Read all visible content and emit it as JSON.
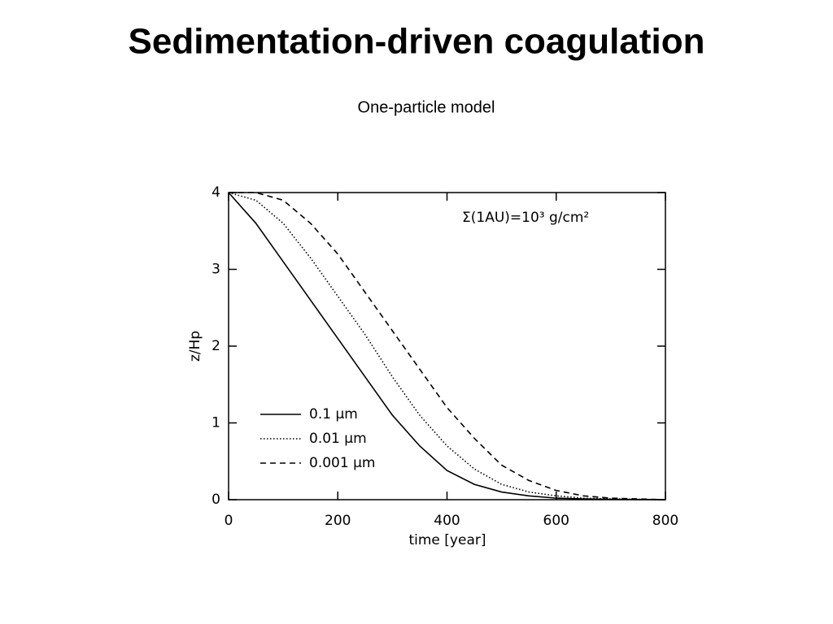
{
  "chart_data": {
    "type": "line",
    "title": "Sedimentation-driven coagulation",
    "subtitle": "One-particle model",
    "xlabel": "time [year]",
    "ylabel": "z/Hp",
    "annotation": "Σ(1AU)=10³ g/cm²",
    "x": [
      0,
      50,
      100,
      150,
      200,
      250,
      300,
      350,
      400,
      450,
      500,
      550,
      600,
      650,
      700,
      750,
      800
    ],
    "series": [
      {
        "name": "0.1 μm",
        "color": "#000000",
        "dash": "solid",
        "values": [
          4,
          3.6,
          3.1,
          2.6,
          2.1,
          1.6,
          1.1,
          0.7,
          0.38,
          0.2,
          0.1,
          0.05,
          0.02,
          0.01,
          0.005,
          0.002,
          0
        ]
      },
      {
        "name": "0.01 μm",
        "color": "#000000",
        "dash": "dotted",
        "values": [
          4,
          3.9,
          3.6,
          3.15,
          2.65,
          2.15,
          1.6,
          1.1,
          0.7,
          0.4,
          0.2,
          0.1,
          0.05,
          0.02,
          0.01,
          0.005,
          0
        ]
      },
      {
        "name": "0.001 μm",
        "color": "#000000",
        "dash": "dashed",
        "values": [
          4,
          4,
          3.9,
          3.6,
          3.2,
          2.7,
          2.2,
          1.7,
          1.2,
          0.8,
          0.45,
          0.25,
          0.12,
          0.05,
          0.02,
          0.01,
          0
        ]
      }
    ],
    "xlim": [
      0,
      800
    ],
    "xticks": [
      0,
      200,
      400,
      600,
      800
    ],
    "ylim": [
      0,
      4
    ],
    "yticks": [
      0,
      1,
      2,
      3,
      4
    ],
    "grid": false,
    "legend": "lower left"
  }
}
